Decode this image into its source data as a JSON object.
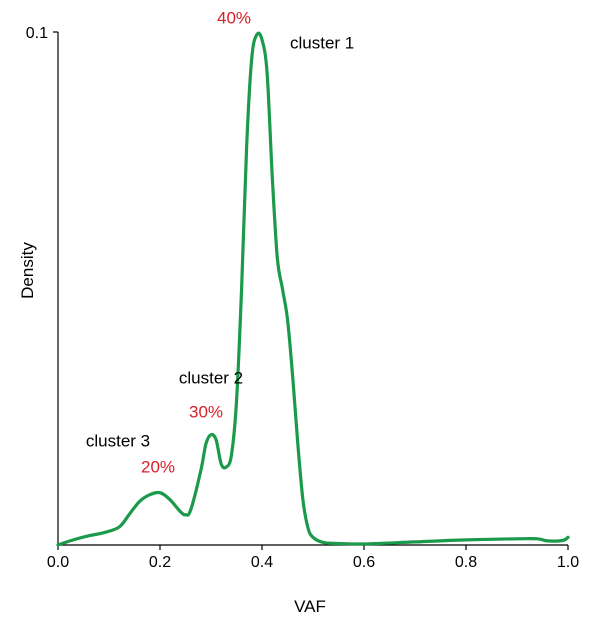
{
  "chart_data": {
    "type": "line",
    "title": "",
    "xlabel": "VAF",
    "ylabel": "Density",
    "xlim": [
      0.0,
      1.0
    ],
    "ylim": [
      0.0,
      0.1
    ],
    "x_ticks": [
      "0.0",
      "0.2",
      "0.4",
      "0.6",
      "0.8",
      "1.0"
    ],
    "x_tick_values": [
      0.0,
      0.2,
      0.4,
      0.6,
      0.8,
      1.0
    ],
    "y_ticks": [
      "0.1"
    ],
    "y_tick_values": [
      0.1
    ],
    "grid": false,
    "line_color": "#1a9a4a",
    "series": [
      {
        "x": [
          0.0,
          0.03,
          0.06,
          0.09,
          0.12,
          0.14,
          0.16,
          0.18,
          0.2,
          0.22,
          0.24,
          0.25,
          0.26,
          0.28,
          0.29,
          0.3,
          0.31,
          0.32,
          0.33,
          0.34,
          0.35,
          0.36,
          0.37,
          0.38,
          0.39,
          0.4,
          0.41,
          0.42,
          0.43,
          0.44,
          0.45,
          0.46,
          0.47,
          0.48,
          0.49,
          0.5,
          0.52,
          0.55,
          0.6,
          0.7,
          0.8,
          0.9,
          0.94,
          0.96,
          0.99,
          1.0
        ],
        "y": [
          0.0,
          0.001,
          0.0018,
          0.0024,
          0.0035,
          0.006,
          0.0085,
          0.0098,
          0.0102,
          0.0088,
          0.0065,
          0.0059,
          0.0068,
          0.0145,
          0.0197,
          0.0215,
          0.0205,
          0.0158,
          0.0152,
          0.0175,
          0.028,
          0.05,
          0.078,
          0.095,
          0.0995,
          0.0985,
          0.092,
          0.072,
          0.056,
          0.05,
          0.044,
          0.033,
          0.02,
          0.009,
          0.0034,
          0.0015,
          0.0005,
          0.0003,
          0.0002,
          0.0006,
          0.001,
          0.0012,
          0.0012,
          0.0008,
          0.0009,
          0.0015
        ]
      }
    ],
    "annotations": [
      {
        "label": "cluster 1",
        "percent": "40%",
        "x": 0.4,
        "y": 0.0995
      },
      {
        "label": "cluster 2",
        "percent": "30%",
        "x": 0.3,
        "y": 0.0215
      },
      {
        "label": "cluster 3",
        "percent": "20%",
        "x": 0.2,
        "y": 0.0102
      }
    ]
  }
}
